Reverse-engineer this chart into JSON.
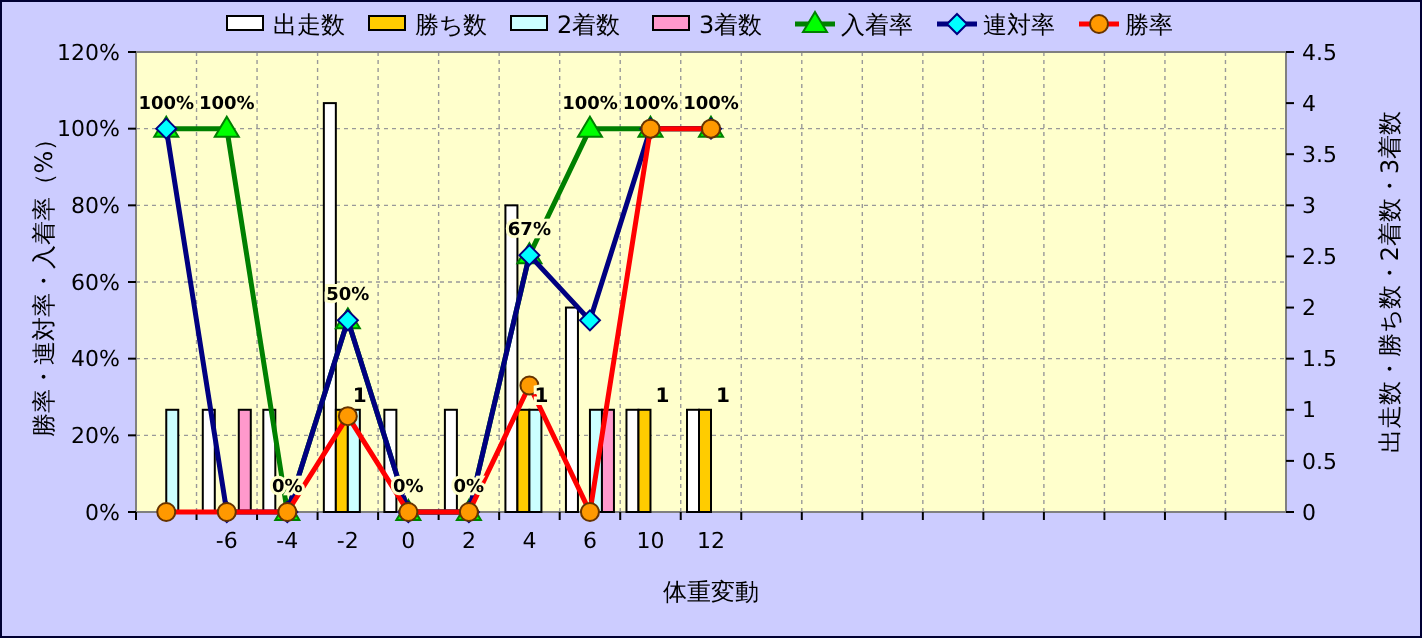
{
  "chart_data": {
    "type": "bar",
    "xlabel": "体重変動",
    "ylabel": "勝率・連対率・入着率（%）",
    "y2label": "出走数・勝ち数・2着数・3着数",
    "categories": [
      null,
      "-6",
      "-4",
      "-2",
      "0",
      "2",
      "4",
      "6",
      "10",
      "12",
      null,
      null,
      null,
      null,
      null,
      null,
      null,
      null,
      null
    ],
    "ylim": [
      0,
      120
    ],
    "yticks": [
      {
        "value": 0,
        "label": "0%"
      },
      {
        "value": 20,
        "label": "20%"
      },
      {
        "value": 40,
        "label": "40%"
      },
      {
        "value": 60,
        "label": "60%"
      },
      {
        "value": 80,
        "label": "80%"
      },
      {
        "value": 100,
        "label": "100%"
      },
      {
        "value": 120,
        "label": "120%"
      }
    ],
    "y2lim": [
      0,
      4.5
    ],
    "y2ticks": [
      0,
      0.5,
      1,
      1.5,
      2,
      2.5,
      3,
      3.5,
      4,
      4.5
    ],
    "grid": true,
    "legend": "top",
    "series": [
      {
        "name": "出走数",
        "axis": "y2",
        "color": "#ffffff",
        "values": [
          null,
          1,
          1,
          4,
          1,
          1,
          3,
          2,
          1,
          1,
          null,
          null,
          null,
          null,
          null,
          null,
          null,
          null,
          null
        ]
      },
      {
        "name": "勝ち数",
        "axis": "y2",
        "color": "#ffcc00",
        "values": [
          0,
          0,
          0,
          1,
          0,
          0,
          1,
          0,
          1,
          1,
          null,
          null,
          null,
          null,
          null,
          null,
          null,
          null,
          null
        ],
        "value_labels": [
          null,
          null,
          null,
          "1",
          null,
          null,
          "1",
          null,
          "1",
          "1",
          null,
          null,
          null,
          null,
          null,
          null,
          null,
          null,
          null
        ]
      },
      {
        "name": "2着数",
        "axis": "y2",
        "color": "#ccffff",
        "values": [
          1,
          0,
          0,
          1,
          0,
          0,
          1,
          1,
          0,
          0,
          null,
          null,
          null,
          null,
          null,
          null,
          null,
          null,
          null
        ]
      },
      {
        "name": "3着数",
        "axis": "y2",
        "color": "#ff99cc",
        "values": [
          0,
          1,
          0,
          0,
          0,
          0,
          0,
          1,
          0,
          0,
          null,
          null,
          null,
          null,
          null,
          null,
          null,
          null,
          null
        ]
      },
      {
        "name": "入着率",
        "type": "line",
        "color": "#008000",
        "marker": "triangle",
        "values": [
          100,
          100,
          0,
          50,
          0,
          0,
          67,
          100,
          100,
          100,
          null,
          null,
          null,
          null,
          null,
          null,
          null,
          null,
          null
        ],
        "value_labels": [
          "100%",
          "100%",
          "0%",
          "50%",
          "0%",
          "0%",
          "67%",
          "100%",
          "100%",
          "100%",
          null,
          null,
          null,
          null,
          null,
          null,
          null,
          null,
          null
        ]
      },
      {
        "name": "連対率",
        "type": "line",
        "color": "#000080",
        "marker": "diamond",
        "values": [
          100,
          0,
          0,
          50,
          0,
          0,
          67,
          50,
          100,
          100,
          null,
          null,
          null,
          null,
          null,
          null,
          null,
          null,
          null
        ]
      },
      {
        "name": "勝率",
        "type": "line",
        "color": "#ff0000",
        "marker": "circle",
        "values": [
          0,
          0,
          0,
          25,
          0,
          0,
          33,
          0,
          100,
          100,
          null,
          null,
          null,
          null,
          null,
          null,
          null,
          null,
          null
        ]
      }
    ]
  }
}
